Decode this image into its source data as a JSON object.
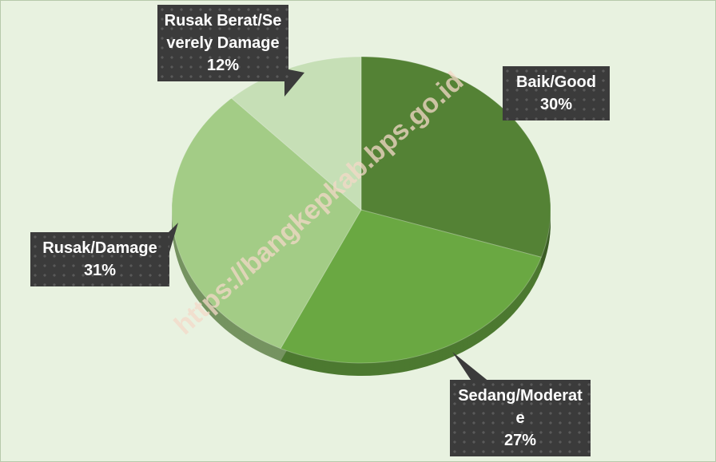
{
  "chart_data": {
    "type": "pie",
    "categories": [
      "Baik/Good",
      "Sedang/Moderate",
      "Rusak/Damage",
      "Rusak Berat/Severely Damage"
    ],
    "values": [
      30,
      27,
      31,
      12
    ],
    "value_labels": [
      "30%",
      "27%",
      "31%",
      "12%"
    ],
    "colors": [
      "#548235",
      "#6aa842",
      "#a3cc86",
      "#c6dfb6"
    ],
    "watermark": "https://bangkepkab.bps.go.id"
  }
}
